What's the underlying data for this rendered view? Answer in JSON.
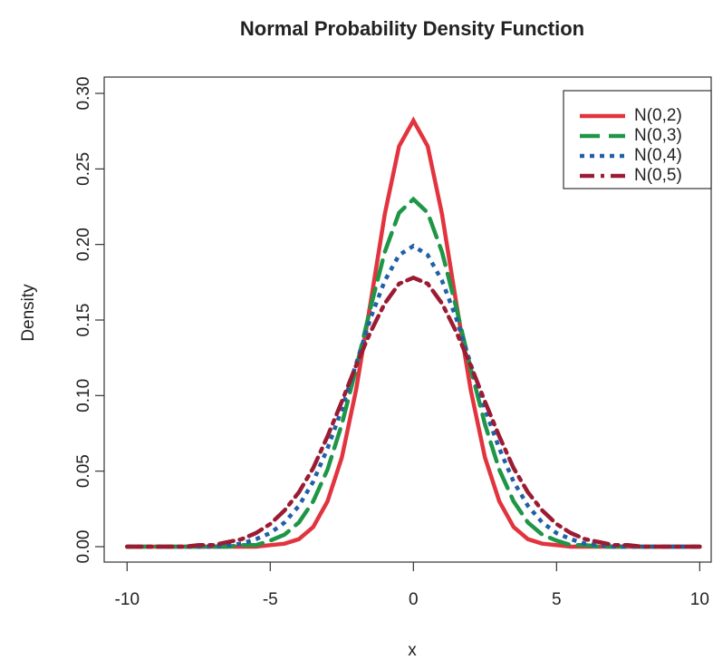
{
  "chart_data": {
    "type": "line",
    "title": "Normal Probability Density Function",
    "xlabel": "x",
    "ylabel": "Density",
    "x": [
      -10,
      -9.5,
      -9,
      -8.5,
      -8,
      -7.5,
      -7,
      -6.5,
      -6,
      -5.5,
      -5,
      -4.5,
      -4,
      -3.5,
      -3,
      -2.5,
      -2,
      -1.5,
      -1,
      -0.5,
      0,
      0.5,
      1,
      1.5,
      2,
      2.5,
      3,
      3.5,
      4,
      4.5,
      5,
      5.5,
      6,
      6.5,
      7,
      7.5,
      8,
      8.5,
      9,
      9.5,
      10
    ],
    "series": [
      {
        "name": "N(0,2)",
        "color": "#e2343f",
        "dash": "solid",
        "values": [
          0,
          0,
          0,
          0,
          0,
          0,
          0,
          0,
          0,
          0,
          0.001,
          0.002,
          0.005,
          0.013,
          0.03,
          0.059,
          0.104,
          0.161,
          0.22,
          0.265,
          0.282,
          0.265,
          0.22,
          0.161,
          0.104,
          0.059,
          0.03,
          0.013,
          0.005,
          0.002,
          0.001,
          0,
          0,
          0,
          0,
          0,
          0,
          0,
          0,
          0,
          0
        ]
      },
      {
        "name": "N(0,3)",
        "color": "#1e9646",
        "dash": "dashed",
        "values": [
          0,
          0,
          0,
          0,
          0,
          0,
          0,
          0,
          0.001,
          0.001,
          0.004,
          0.008,
          0.016,
          0.03,
          0.051,
          0.081,
          0.118,
          0.158,
          0.195,
          0.221,
          0.23,
          0.221,
          0.195,
          0.158,
          0.118,
          0.081,
          0.051,
          0.03,
          0.016,
          0.008,
          0.004,
          0.001,
          0.001,
          0,
          0,
          0,
          0,
          0,
          0,
          0,
          0
        ]
      },
      {
        "name": "N(0,4)",
        "color": "#2060a8",
        "dash": "dotted",
        "values": [
          0,
          0,
          0,
          0,
          0,
          0,
          0,
          0.001,
          0.002,
          0.005,
          0.009,
          0.016,
          0.027,
          0.043,
          0.065,
          0.091,
          0.121,
          0.151,
          0.176,
          0.193,
          0.199,
          0.193,
          0.176,
          0.151,
          0.121,
          0.091,
          0.065,
          0.043,
          0.027,
          0.016,
          0.009,
          0.005,
          0.002,
          0.001,
          0,
          0,
          0,
          0,
          0,
          0,
          0
        ]
      },
      {
        "name": "N(0,5)",
        "color": "#9b1c32",
        "dash": "dotdash",
        "values": [
          0,
          0,
          0,
          0,
          0,
          0.001,
          0.001,
          0.003,
          0.005,
          0.009,
          0.015,
          0.024,
          0.036,
          0.052,
          0.073,
          0.096,
          0.12,
          0.142,
          0.161,
          0.174,
          0.178,
          0.174,
          0.161,
          0.142,
          0.12,
          0.096,
          0.073,
          0.052,
          0.036,
          0.024,
          0.015,
          0.009,
          0.005,
          0.003,
          0.001,
          0.001,
          0,
          0,
          0,
          0,
          0
        ]
      }
    ],
    "xlim": [
      -10.8,
      10.4
    ],
    "ylim": [
      -0.0102,
      0.3108
    ],
    "xticks": [
      -10,
      -5,
      0,
      5,
      10
    ],
    "yticks": [
      {
        "value": 0,
        "label": "0.00"
      },
      {
        "value": 0.05,
        "label": "0.05"
      },
      {
        "value": 0.1,
        "label": "0.10"
      },
      {
        "value": 0.15,
        "label": "0.15"
      },
      {
        "value": 0.2,
        "label": "0.20"
      },
      {
        "value": 0.25,
        "label": "0.25"
      },
      {
        "value": 0.3,
        "label": "0.30"
      }
    ],
    "legend": "top-right"
  }
}
